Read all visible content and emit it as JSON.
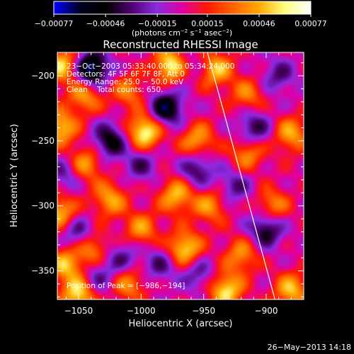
{
  "chart_data": {
    "type": "heatmap",
    "title": "Reconstructed RHESSI Image",
    "xlabel": "Heliocentric X (arcsec)",
    "ylabel": "Heliocentric Y (arcsec)",
    "xlim": [
      -1067,
      -870
    ],
    "ylim": [
      -372,
      -182
    ],
    "x_ticks": [
      -1050,
      -1000,
      -950,
      -900
    ],
    "y_ticks": [
      -200,
      -250,
      -300,
      -350
    ],
    "colorbar": {
      "unit_label": "(photons cm",
      "unit_sup1": "−2",
      "unit_mid": " s",
      "unit_sup2": "−1",
      "unit_mid2": " asec",
      "unit_sup3": "−2",
      "unit_end": ")",
      "range": [
        -0.00077,
        0.00077
      ],
      "ticks": [
        -0.00077,
        -0.00046,
        -0.00015,
        0.00015,
        0.00046,
        0.00077
      ],
      "tick_labels": [
        "−0.00077",
        "−0.00046",
        "−0.00015",
        "0.00015",
        "0.00046",
        "0.00077"
      ],
      "colors": [
        "#0000ff",
        "#000020",
        "#000000",
        "#500070",
        "#8a2be2",
        "#e000a0",
        "#ff1a00",
        "#ff6600",
        "#ffaa00",
        "#ffff80",
        "#ffffff"
      ]
    },
    "annotations": [
      "23−Oct−2003 05:33:40.000 to 05:34:24.000",
      "Detectors: 4F 5F 6F 7F 8F, Att 0",
      "Energy Range: 25.0 − 50.0 keV",
      "Clean    Total counts: 650.",
      "Position of Peak = [−986,−194]"
    ],
    "limb_line": {
      "x": [
        -947,
        -893
      ],
      "y": [
        -182,
        -372
      ]
    },
    "peak": {
      "x": -986,
      "y": -194
    },
    "sources": [
      {
        "x": -975,
        "y": -192,
        "v": 0.00077
      },
      {
        "x": -1063,
        "y": -192,
        "v": 0.00055
      },
      {
        "x": -1045,
        "y": -215,
        "v": 0.00045
      },
      {
        "x": -1010,
        "y": -212,
        "v": 0.00035
      },
      {
        "x": -940,
        "y": -195,
        "v": 0.0005
      },
      {
        "x": -915,
        "y": -215,
        "v": 0.00035
      },
      {
        "x": -1065,
        "y": -240,
        "v": 0.00055
      },
      {
        "x": -997,
        "y": -243,
        "v": 0.0007
      },
      {
        "x": -955,
        "y": -250,
        "v": 0.00045
      },
      {
        "x": -915,
        "y": -260,
        "v": 0.0004
      },
      {
        "x": -880,
        "y": -245,
        "v": 0.00045
      },
      {
        "x": -1045,
        "y": -268,
        "v": 0.00045
      },
      {
        "x": -1025,
        "y": -295,
        "v": 0.00045
      },
      {
        "x": -972,
        "y": -292,
        "v": 0.0005
      },
      {
        "x": -945,
        "y": -300,
        "v": 0.0004
      },
      {
        "x": -1065,
        "y": -305,
        "v": 0.0005
      },
      {
        "x": -1000,
        "y": -318,
        "v": 0.0004
      },
      {
        "x": -895,
        "y": -300,
        "v": 0.0004
      },
      {
        "x": -1040,
        "y": -332,
        "v": 0.00045
      },
      {
        "x": -965,
        "y": -333,
        "v": 0.0006
      },
      {
        "x": -920,
        "y": -338,
        "v": 0.0004
      },
      {
        "x": -1060,
        "y": -345,
        "v": 0.0005
      },
      {
        "x": -1050,
        "y": -368,
        "v": 0.0006
      },
      {
        "x": -1010,
        "y": -360,
        "v": 0.0004
      },
      {
        "x": -932,
        "y": -365,
        "v": 0.0006
      },
      {
        "x": -880,
        "y": -365,
        "v": 0.0005
      },
      {
        "x": -1040,
        "y": -195,
        "v": -0.00077
      },
      {
        "x": -980,
        "y": -225,
        "v": -0.0006
      },
      {
        "x": -1025,
        "y": -250,
        "v": -0.0005
      },
      {
        "x": -955,
        "y": -272,
        "v": -0.0004
      },
      {
        "x": -1000,
        "y": -268,
        "v": -0.0003
      },
      {
        "x": -1060,
        "y": -275,
        "v": -0.0003
      },
      {
        "x": -910,
        "y": -240,
        "v": -0.0004
      },
      {
        "x": -1050,
        "y": -322,
        "v": -0.0004
      },
      {
        "x": -985,
        "y": -345,
        "v": -0.0003
      },
      {
        "x": -900,
        "y": -318,
        "v": -0.0005
      },
      {
        "x": -925,
        "y": -285,
        "v": -0.0003
      },
      {
        "x": -1035,
        "y": -355,
        "v": -0.0003
      },
      {
        "x": -955,
        "y": -352,
        "v": -0.0003
      },
      {
        "x": -1015,
        "y": -340,
        "v": -0.0003
      },
      {
        "x": -965,
        "y": -192,
        "v": -0.0003
      },
      {
        "x": -890,
        "y": -200,
        "v": -0.0003
      }
    ]
  },
  "footer": {
    "timestamp": "26−May−2013 14:18"
  }
}
